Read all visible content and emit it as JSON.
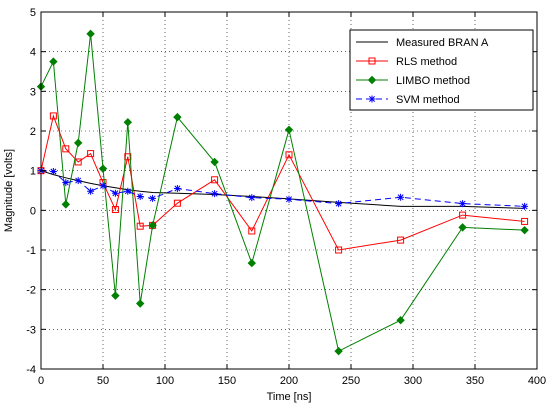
{
  "chart_data": {
    "type": "line",
    "xlabel": "Time [ns]",
    "ylabel": "Magnitude [volts]",
    "xlim": [
      0,
      400
    ],
    "ylim": [
      -4,
      5
    ],
    "xticks": [
      "0",
      "50",
      "100",
      "150",
      "200",
      "250",
      "300",
      "350",
      "400"
    ],
    "yticks": [
      "-4",
      "-3",
      "-2",
      "-1",
      "0",
      "1",
      "2",
      "3",
      "4",
      "5"
    ],
    "grid": "dotted",
    "legend_position": "top-right",
    "series": [
      {
        "name": "Measured BRAN A",
        "color": "#000000",
        "dash": "solid",
        "marker": "none",
        "x": [
          0,
          10,
          20,
          30,
          40,
          50,
          60,
          70,
          80,
          90,
          110,
          140,
          170,
          200,
          240,
          290,
          340,
          390
        ],
        "y": [
          1.0,
          0.9,
          0.82,
          0.75,
          0.68,
          0.62,
          0.57,
          0.52,
          0.48,
          0.45,
          0.43,
          0.4,
          0.35,
          0.29,
          0.2,
          0.1,
          0.1,
          0.05
        ]
      },
      {
        "name": "RLS method",
        "color": "#ff0000",
        "dash": "solid",
        "marker": "square",
        "x": [
          0,
          10,
          20,
          30,
          40,
          50,
          60,
          70,
          80,
          90,
          110,
          140,
          170,
          200,
          240,
          290,
          340,
          390
        ],
        "y": [
          1.0,
          2.38,
          1.55,
          1.22,
          1.43,
          0.7,
          0.02,
          1.35,
          -0.4,
          -0.38,
          0.18,
          0.77,
          -0.52,
          1.4,
          -1.0,
          -0.75,
          -0.12,
          -0.28
        ]
      },
      {
        "name": "LIMBO method",
        "color": "#008000",
        "dash": "solid",
        "marker": "diamond",
        "x": [
          0,
          10,
          20,
          30,
          40,
          50,
          60,
          70,
          80,
          90,
          110,
          140,
          170,
          200,
          240,
          290,
          340,
          390
        ],
        "y": [
          3.12,
          3.75,
          0.15,
          1.7,
          4.45,
          1.05,
          -2.15,
          2.22,
          -2.35,
          -0.38,
          2.35,
          1.22,
          -1.33,
          2.03,
          -3.55,
          -2.77,
          -0.43,
          -0.5
        ]
      },
      {
        "name": "SVM method",
        "color": "#0000ff",
        "dash": "dashed",
        "marker": "asterisk",
        "x": [
          0,
          10,
          20,
          30,
          40,
          50,
          60,
          70,
          80,
          90,
          110,
          140,
          170,
          200,
          240,
          290,
          340,
          390
        ],
        "y": [
          1.0,
          0.98,
          0.7,
          0.75,
          0.48,
          0.62,
          0.43,
          0.48,
          0.35,
          0.3,
          0.55,
          0.42,
          0.32,
          0.28,
          0.17,
          0.33,
          0.17,
          0.1
        ]
      }
    ]
  }
}
